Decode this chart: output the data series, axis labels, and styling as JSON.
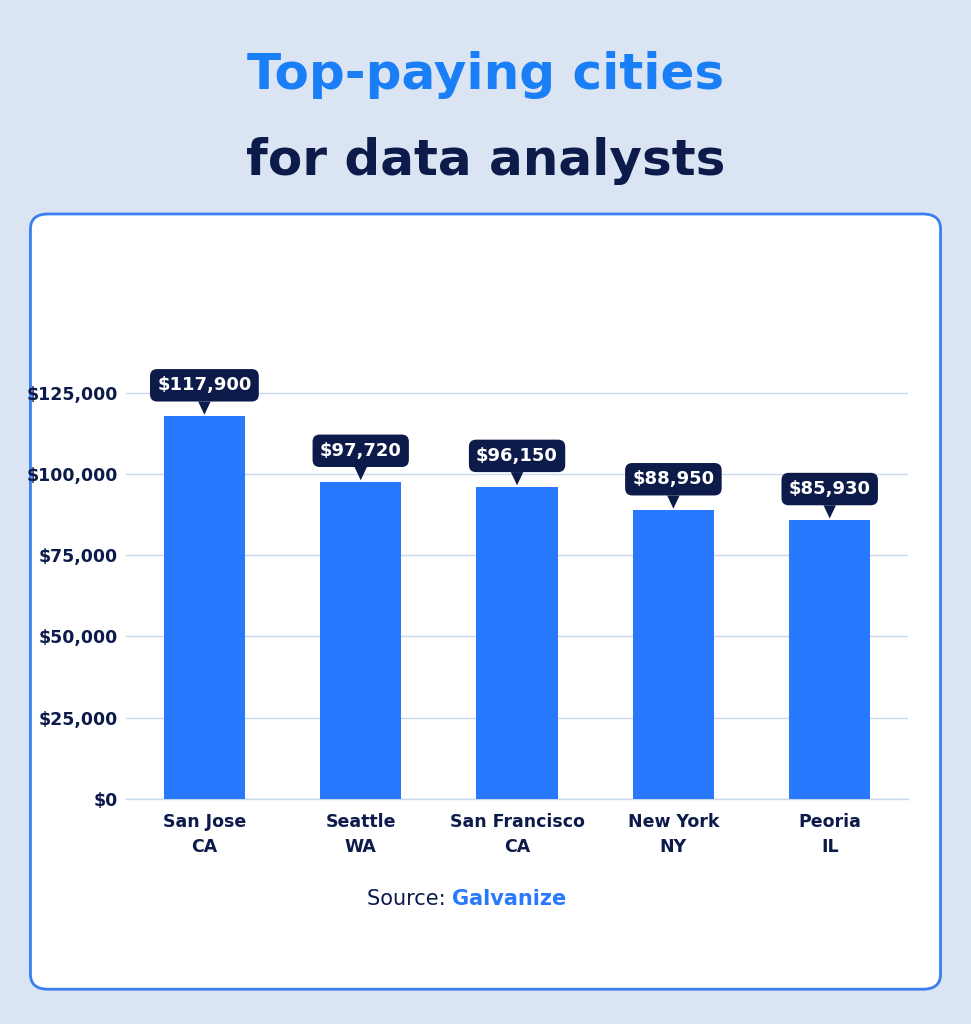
{
  "title_line1": "Top-paying cities",
  "title_line2": "for data analysts",
  "title_color1": "#1a7ef7",
  "title_color2": "#0d1b4b",
  "categories": [
    "San Jose\nCA",
    "Seattle\nWA",
    "San Francisco\nCA",
    "New York\nNY",
    "Peoria\nIL"
  ],
  "values": [
    117900,
    97720,
    96150,
    88950,
    85930
  ],
  "labels": [
    "$117,900",
    "$97,720",
    "$96,150",
    "$88,950",
    "$85,930"
  ],
  "bar_color": "#2979FF",
  "label_bg_color": "#0d1b4b",
  "label_text_color": "#ffffff",
  "background_color": "#dae4f2",
  "chart_bg_color": "#ffffff",
  "ylim": [
    0,
    142000
  ],
  "yticks": [
    0,
    25000,
    50000,
    75000,
    100000,
    125000
  ],
  "ytick_labels": [
    "$0",
    "$25,000",
    "$50,000",
    "$75,000",
    "$100,000",
    "$125,000"
  ],
  "source_text": "Source: ",
  "source_link": "Galvanize",
  "source_color": "#0d1b4b",
  "source_link_color": "#2979FF",
  "grid_color": "#c8d8ee",
  "axis_label_color": "#0d1b4b",
  "panel_border_color": "#3a7ef0"
}
